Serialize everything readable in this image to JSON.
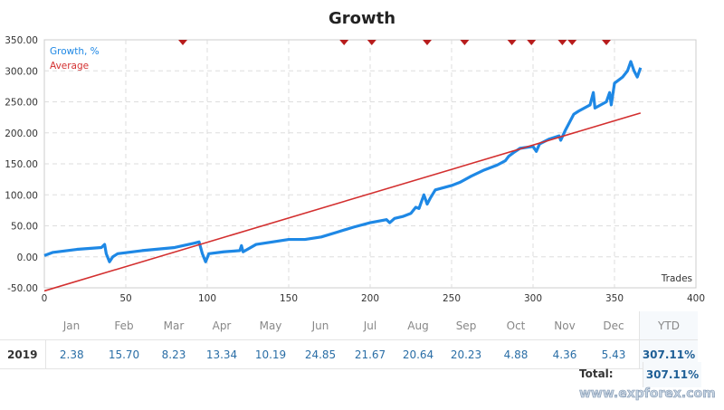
{
  "chart_data": {
    "type": "line",
    "title": "Growth",
    "xlabel": "Trades",
    "ylabel": "",
    "xlim": [
      0,
      400
    ],
    "ylim": [
      -50,
      350
    ],
    "xticks": [
      0,
      50,
      100,
      150,
      200,
      250,
      300,
      350,
      400
    ],
    "yticks": [
      "-50.00",
      "0.00",
      "50.00",
      "100.00",
      "150.00",
      "200.00",
      "250.00",
      "300.00",
      "350.00"
    ],
    "grid": true,
    "legend_placement": "top-left",
    "series": [
      {
        "name": "Growth, %",
        "color": "#1e88e5",
        "points": [
          [
            0,
            2
          ],
          [
            5,
            7
          ],
          [
            20,
            12
          ],
          [
            35,
            15
          ],
          [
            37,
            20
          ],
          [
            38,
            5
          ],
          [
            40,
            -8
          ],
          [
            42,
            0
          ],
          [
            45,
            5
          ],
          [
            60,
            10
          ],
          [
            80,
            15
          ],
          [
            92,
            22
          ],
          [
            95,
            24
          ],
          [
            97,
            5
          ],
          [
            99,
            -8
          ],
          [
            101,
            5
          ],
          [
            110,
            8
          ],
          [
            120,
            10
          ],
          [
            121,
            18
          ],
          [
            122,
            8
          ],
          [
            130,
            20
          ],
          [
            150,
            28
          ],
          [
            160,
            28
          ],
          [
            170,
            32
          ],
          [
            180,
            40
          ],
          [
            190,
            48
          ],
          [
            200,
            55
          ],
          [
            210,
            60
          ],
          [
            212,
            55
          ],
          [
            215,
            62
          ],
          [
            220,
            65
          ],
          [
            225,
            70
          ],
          [
            228,
            80
          ],
          [
            230,
            78
          ],
          [
            233,
            100
          ],
          [
            235,
            85
          ],
          [
            237,
            95
          ],
          [
            240,
            108
          ],
          [
            250,
            115
          ],
          [
            255,
            120
          ],
          [
            262,
            130
          ],
          [
            270,
            140
          ],
          [
            278,
            148
          ],
          [
            283,
            155
          ],
          [
            285,
            162
          ],
          [
            288,
            168
          ],
          [
            292,
            175
          ],
          [
            300,
            178
          ],
          [
            302,
            170
          ],
          [
            304,
            182
          ],
          [
            310,
            190
          ],
          [
            316,
            195
          ],
          [
            317,
            188
          ],
          [
            320,
            205
          ],
          [
            325,
            230
          ],
          [
            328,
            235
          ],
          [
            335,
            245
          ],
          [
            337,
            265
          ],
          [
            338,
            240
          ],
          [
            345,
            250
          ],
          [
            347,
            265
          ],
          [
            348,
            245
          ],
          [
            350,
            280
          ],
          [
            355,
            290
          ],
          [
            358,
            300
          ],
          [
            360,
            315
          ],
          [
            362,
            300
          ],
          [
            364,
            290
          ],
          [
            366,
            305
          ]
        ]
      },
      {
        "name": "Average",
        "color": "#d32f2f",
        "points": [
          [
            0,
            -55
          ],
          [
            366,
            232
          ]
        ]
      }
    ],
    "markers_x": [
      85,
      184,
      201,
      235,
      258,
      287,
      299,
      318,
      324,
      345
    ],
    "marker_color": "#b71c1c"
  },
  "table": {
    "months": [
      "Jan",
      "Feb",
      "Mar",
      "Apr",
      "May",
      "Jun",
      "Jul",
      "Aug",
      "Sep",
      "Oct",
      "Nov",
      "Dec"
    ],
    "ytd_label": "YTD",
    "year": "2019",
    "values": [
      "2.38",
      "15.70",
      "8.23",
      "13.34",
      "10.19",
      "24.85",
      "21.67",
      "20.64",
      "20.23",
      "4.88",
      "4.36",
      "5.43"
    ],
    "ytd": "307.11%",
    "total_label": "Total:",
    "total": "307.11%"
  },
  "watermark": "www.expforex.com"
}
